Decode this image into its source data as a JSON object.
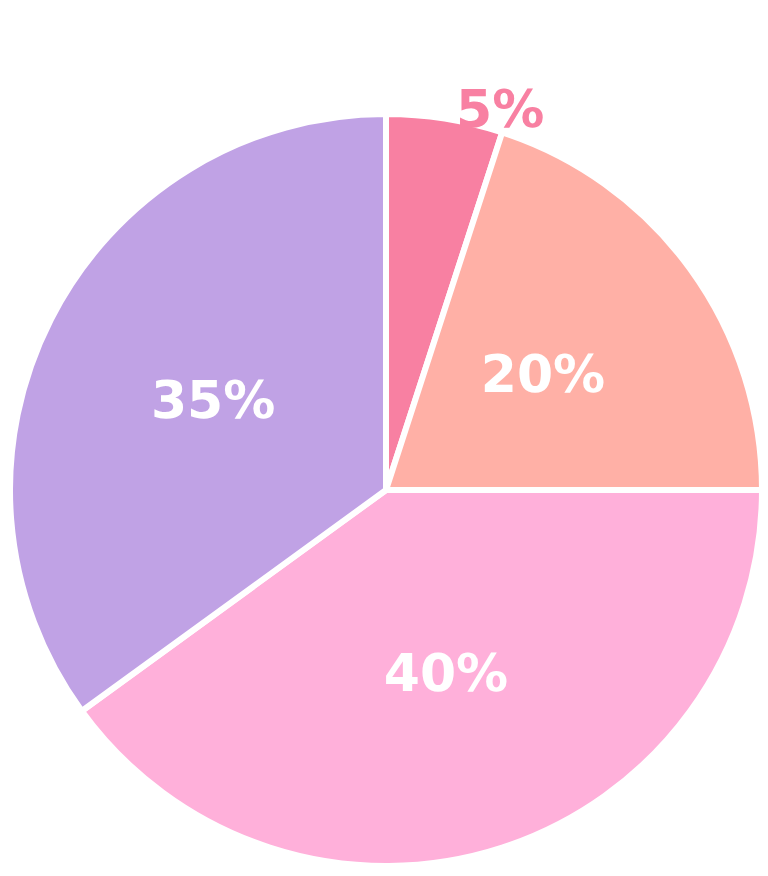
{
  "chart_data": {
    "type": "pie",
    "categories": [
      null,
      null,
      null,
      null
    ],
    "values": [
      5,
      20,
      40,
      35
    ],
    "colors": [
      "#f880a2",
      "#ffb0a6",
      "#ffb0da",
      "#c0a2e5"
    ],
    "value_labels": [
      "5%",
      "20%",
      "40%",
      "35%"
    ]
  }
}
